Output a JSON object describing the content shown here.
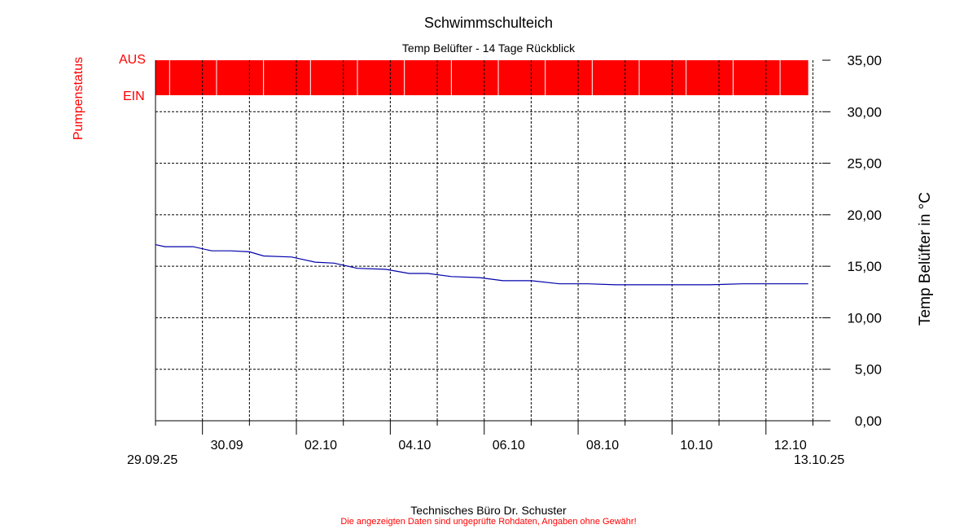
{
  "header": {
    "title": "Schwimmschulteich",
    "subtitle": "Temp Belüfter - 14 Tage Rückblick"
  },
  "footer": {
    "line1": "Technisches Büro Dr. Schuster",
    "line2": "Die angezeigten Daten sind ungeprüfte Rohdaten, Angaben ohne Gewähr!"
  },
  "colors": {
    "temperature_line": "#0000aa",
    "pump_status": "#ff0000",
    "grid": "#000000"
  },
  "chart_data": {
    "type": "line",
    "title": "Schwimmschulteich",
    "subtitle": "Temp Belüfter - 14 Tage Rückblick",
    "xlabel": "",
    "ylabel": "Temp Belüfter in °C",
    "x_start_label": "29.09.25",
    "x_end_label": "13.10.25",
    "x_range_days": [
      0,
      14.2
    ],
    "ylim": [
      0,
      35
    ],
    "y_ticks": [
      "0,00",
      "5,00",
      "10,00",
      "15,00",
      "20,00",
      "25,00",
      "30,00",
      "35,00"
    ],
    "x_ticks": [
      {
        "label": "30.09",
        "day": 1
      },
      {
        "label": "02.10",
        "day": 3
      },
      {
        "label": "04.10",
        "day": 5
      },
      {
        "label": "06.10",
        "day": 7
      },
      {
        "label": "08.10",
        "day": 9
      },
      {
        "label": "10.10",
        "day": 11
      },
      {
        "label": "12.10",
        "day": 13
      }
    ],
    "grid": true,
    "series": [
      {
        "name": "Temp Belüfter",
        "x_days": [
          0,
          0.2,
          0.8,
          1.2,
          1.6,
          2.0,
          2.3,
          2.9,
          3.4,
          3.8,
          4.3,
          4.9,
          5.4,
          5.8,
          6.3,
          6.9,
          7.4,
          8.0,
          8.6,
          9.2,
          9.8,
          10.5,
          11.2,
          11.8,
          12.5,
          13.0,
          13.9
        ],
        "y": [
          17.1,
          16.9,
          16.9,
          16.5,
          16.5,
          16.4,
          16.0,
          15.9,
          15.4,
          15.3,
          14.8,
          14.7,
          14.3,
          14.3,
          14.0,
          13.9,
          13.6,
          13.6,
          13.3,
          13.3,
          13.2,
          13.2,
          13.2,
          13.2,
          13.3,
          13.3,
          13.3
        ]
      }
    ],
    "pump_status": {
      "ylabel": "Pumpenstatus",
      "label_on": "EIN",
      "label_off": "AUS",
      "state": "EIN",
      "off_marks_days": [
        0.3,
        1.3,
        2.3,
        3.3,
        4.3,
        5.3,
        6.3,
        7.3,
        8.3,
        9.3,
        10.3,
        11.3,
        12.3,
        13.3
      ]
    }
  }
}
